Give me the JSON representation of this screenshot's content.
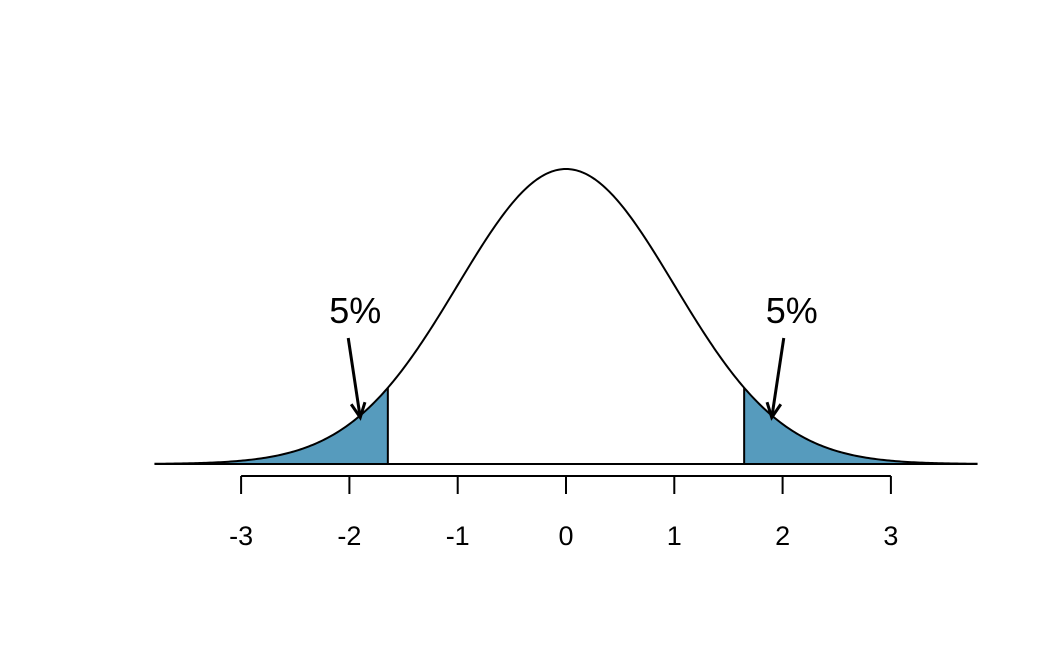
{
  "chart_data": {
    "type": "area",
    "distribution": "standard normal",
    "mean": 0,
    "sd": 1,
    "xlim": [
      -3.8,
      3.8
    ],
    "ticks": [
      -3,
      -2,
      -1,
      0,
      1,
      2,
      3
    ],
    "tick_labels": [
      "-3",
      "-2",
      "-1",
      "0",
      "1",
      "2",
      "3"
    ],
    "shaded_regions": [
      {
        "from": -3.8,
        "to": -1.645,
        "area": "5%"
      },
      {
        "from": 1.645,
        "to": 3.8,
        "area": "5%"
      }
    ],
    "annotations": [
      {
        "text": "5%",
        "points_to_x": -1.9
      },
      {
        "text": "5%",
        "points_to_x": 1.9
      }
    ],
    "colors": {
      "shade": "#569bbd",
      "curve": "#000000",
      "background": "#ffffff"
    },
    "title": "",
    "xlabel": "",
    "ylabel": "",
    "grid": false,
    "legend": "none"
  }
}
